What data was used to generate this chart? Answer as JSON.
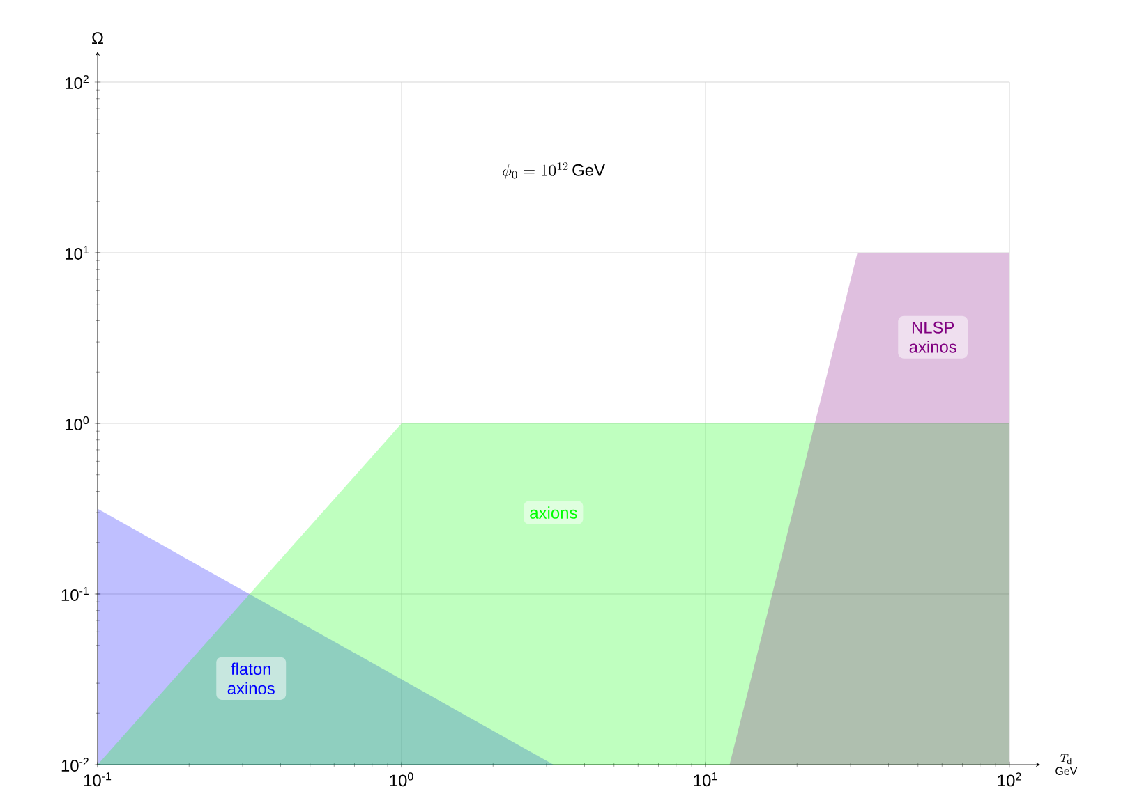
{
  "chart_data": {
    "type": "area",
    "xlabel": "\\frac{T_{\\mathrm{d}}}{\\mathrm{GeV}}",
    "ylabel": "Ω",
    "log": "xy",
    "grid": true,
    "xlim": [
      0.1,
      100
    ],
    "ylim": [
      0.01,
      100
    ],
    "xticks": [
      {
        "value": 0.1,
        "label": "10$^{-1}$"
      },
      {
        "value": 1,
        "label": "10$^{0}$"
      },
      {
        "value": 10,
        "label": "10$^{1}$"
      },
      {
        "value": 100,
        "label": "10$^{2}$"
      }
    ],
    "yticks": [
      {
        "value": 0.01,
        "label": "10$^{-2}$"
      },
      {
        "value": 0.1,
        "label": "10$^{-1}$"
      },
      {
        "value": 1,
        "label": "10$^{0}$"
      },
      {
        "value": 10,
        "label": "10$^{1}$"
      },
      {
        "value": 100,
        "label": "10$^{2}$"
      }
    ],
    "annotations": [
      "\\phi_0 = 10^{12}\\,\\mathrm{GeV}"
    ],
    "series": [
      {
        "name": "flaton axinos",
        "color": "#0000ff",
        "x": [
          0.1,
          3.16
        ],
        "values": [
          0.316,
          0.01
        ]
      },
      {
        "name": "axions",
        "color": "#00ff00",
        "x": [
          0.1,
          1,
          100
        ],
        "values": [
          0.01,
          1,
          1
        ]
      },
      {
        "name": "NLSP axinos",
        "color": "#800080",
        "x": [
          12,
          31.6,
          100
        ],
        "values": [
          0.01,
          10,
          10
        ]
      }
    ]
  }
}
